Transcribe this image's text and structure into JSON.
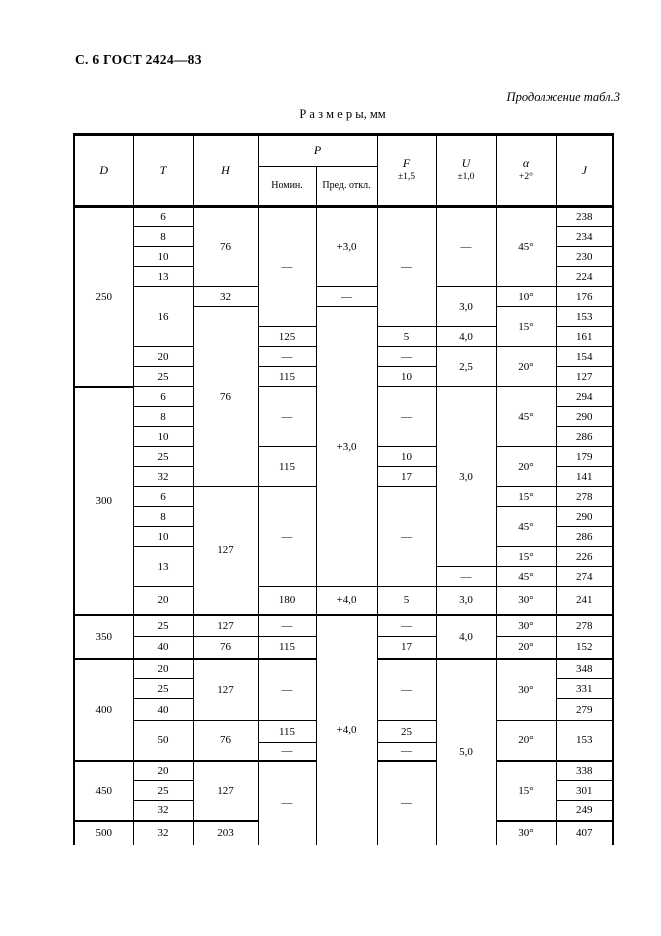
{
  "page": {
    "doc_ref": "С. 6 ГОСТ 2424—83",
    "continuation_note": "Продолжение табл.3",
    "units_caption": "Р а з м е р ы, мм"
  },
  "table": {
    "header": {
      "d": "D",
      "t": "T",
      "h": "H",
      "p": "P",
      "nomin": "Номин.",
      "pred": "Пред. откл.",
      "f": "F",
      "f_tol": "±1,5",
      "u": "U",
      "u_tol": "±1,0",
      "alpha": "α",
      "alpha_tol": "+2°",
      "j": "J"
    },
    "rows": [
      {
        "cells": [
          {
            "col": "D",
            "v": "250",
            "rs": 9
          },
          {
            "col": "T",
            "v": "6"
          },
          {
            "col": "H",
            "v": "76",
            "rs": 4
          },
          {
            "col": "N",
            "v": "—",
            "rs": 6
          },
          {
            "col": "PO",
            "v": "+3,0",
            "rs": 4
          },
          {
            "col": "F",
            "v": "—",
            "rs": 6
          },
          {
            "col": "U",
            "v": "—",
            "rs": 4
          },
          {
            "col": "A",
            "v": "45°",
            "rs": 4
          },
          {
            "col": "J",
            "v": "238"
          }
        ]
      },
      {
        "cells": [
          {
            "col": "T",
            "v": "8"
          },
          {
            "col": "J",
            "v": "234"
          }
        ]
      },
      {
        "cells": [
          {
            "col": "T",
            "v": "10"
          },
          {
            "col": "J",
            "v": "230"
          }
        ]
      },
      {
        "cells": [
          {
            "col": "T",
            "v": "13"
          },
          {
            "col": "J",
            "v": "224"
          }
        ]
      },
      {
        "cells": [
          {
            "col": "T",
            "v": "16",
            "rs": 3
          },
          {
            "col": "H",
            "v": "32"
          },
          {
            "col": "PO",
            "v": "—"
          },
          {
            "col": "U",
            "v": "3,0",
            "rs": 2
          },
          {
            "col": "A",
            "v": "10°"
          },
          {
            "col": "J",
            "v": "176"
          }
        ]
      },
      {
        "cells": [
          {
            "col": "H",
            "v": "76",
            "rs": 9
          },
          {
            "col": "PO",
            "v": "+3,0",
            "rs": 14
          },
          {
            "col": "A",
            "v": "15°",
            "rs": 2
          },
          {
            "col": "J",
            "v": "153"
          }
        ]
      },
      {
        "cells": [
          {
            "col": "N",
            "v": "125"
          },
          {
            "col": "F",
            "v": "5"
          },
          {
            "col": "U",
            "v": "4,0"
          },
          {
            "col": "J",
            "v": "161"
          }
        ]
      },
      {
        "cells": [
          {
            "col": "T",
            "v": "20"
          },
          {
            "col": "N",
            "v": "—"
          },
          {
            "col": "F",
            "v": "—"
          },
          {
            "col": "U",
            "v": "2,5",
            "rs": 2
          },
          {
            "col": "A",
            "v": "20°",
            "rs": 2
          },
          {
            "col": "J",
            "v": "154"
          }
        ]
      },
      {
        "cells": [
          {
            "col": "T",
            "v": "25"
          },
          {
            "col": "N",
            "v": "115"
          },
          {
            "col": "F",
            "v": "10"
          },
          {
            "col": "J",
            "v": "127"
          }
        ]
      },
      {
        "sep": "d",
        "cells": [
          {
            "col": "D",
            "v": "300",
            "rs": 11
          },
          {
            "col": "T",
            "v": "6"
          },
          {
            "col": "N",
            "v": "—",
            "rs": 3
          },
          {
            "col": "F",
            "v": "—",
            "rs": 3
          },
          {
            "col": "U",
            "v": "3,0",
            "rs": 9
          },
          {
            "col": "A",
            "v": "45°",
            "rs": 3
          },
          {
            "col": "J",
            "v": "294"
          }
        ]
      },
      {
        "cells": [
          {
            "col": "T",
            "v": "8"
          },
          {
            "col": "J",
            "v": "290"
          }
        ]
      },
      {
        "cells": [
          {
            "col": "T",
            "v": "10"
          },
          {
            "col": "J",
            "v": "286"
          }
        ]
      },
      {
        "cells": [
          {
            "col": "T",
            "v": "25"
          },
          {
            "col": "N",
            "v": "115",
            "rs": 2
          },
          {
            "col": "F",
            "v": "10"
          },
          {
            "col": "A",
            "v": "20°",
            "rs": 2
          },
          {
            "col": "J",
            "v": "179"
          }
        ]
      },
      {
        "cells": [
          {
            "col": "T",
            "v": "32"
          },
          {
            "col": "F",
            "v": "17"
          },
          {
            "col": "J",
            "v": "141"
          }
        ]
      },
      {
        "cells": [
          {
            "col": "T",
            "v": "6"
          },
          {
            "col": "H",
            "v": "127",
            "rs": 6
          },
          {
            "col": "N",
            "v": "—",
            "rs": 5
          },
          {
            "col": "F",
            "v": "—",
            "rs": 5
          },
          {
            "col": "A",
            "v": "15°"
          },
          {
            "col": "J",
            "v": "278"
          }
        ]
      },
      {
        "cells": [
          {
            "col": "T",
            "v": "8"
          },
          {
            "col": "A",
            "v": "45°",
            "rs": 2
          },
          {
            "col": "J",
            "v": "290"
          }
        ]
      },
      {
        "cells": [
          {
            "col": "T",
            "v": "10"
          },
          {
            "col": "J",
            "v": "286"
          }
        ]
      },
      {
        "cells": [
          {
            "col": "T",
            "v": "13",
            "rs": 2
          },
          {
            "col": "A",
            "v": "15°"
          },
          {
            "col": "J",
            "v": "226"
          }
        ]
      },
      {
        "cells": [
          {
            "col": "U",
            "v": "—"
          },
          {
            "col": "A",
            "v": "45°"
          },
          {
            "col": "J",
            "v": "274"
          }
        ]
      },
      {
        "cells": [
          {
            "col": "T",
            "v": "20"
          },
          {
            "col": "N",
            "v": "180"
          },
          {
            "col": "PO",
            "v": "+4,0"
          },
          {
            "col": "F",
            "v": "5"
          },
          {
            "col": "U",
            "v": "3,0"
          },
          {
            "col": "A",
            "v": "30°"
          },
          {
            "col": "J",
            "v": "241"
          }
        ]
      },
      {
        "sep": "all",
        "cells": [
          {
            "col": "D",
            "v": "350",
            "rs": 2
          },
          {
            "col": "T",
            "v": "25"
          },
          {
            "col": "H",
            "v": "127"
          },
          {
            "col": "N",
            "v": "—"
          },
          {
            "col": "PO",
            "v": "+4,0",
            "rs": 11
          },
          {
            "col": "F",
            "v": "—"
          },
          {
            "col": "U",
            "v": "4,0",
            "rs": 2
          },
          {
            "col": "A",
            "v": "30°"
          },
          {
            "col": "J",
            "v": "278"
          }
        ]
      },
      {
        "cells": [
          {
            "col": "T",
            "v": "40"
          },
          {
            "col": "H",
            "v": "76"
          },
          {
            "col": "N",
            "v": "115"
          },
          {
            "col": "F",
            "v": "17"
          },
          {
            "col": "A",
            "v": "20°"
          },
          {
            "col": "J",
            "v": "152"
          }
        ]
      },
      {
        "sep": "all",
        "cells": [
          {
            "col": "D",
            "v": "400",
            "rs": 5
          },
          {
            "col": "T",
            "v": "20"
          },
          {
            "col": "H",
            "v": "127",
            "rs": 3
          },
          {
            "col": "N",
            "v": "—",
            "rs": 3
          },
          {
            "col": "F",
            "v": "—",
            "rs": 3
          },
          {
            "col": "U",
            "v": "5,0",
            "rs": 9
          },
          {
            "col": "A",
            "v": "30°",
            "rs": 3
          },
          {
            "col": "J",
            "v": "348"
          }
        ]
      },
      {
        "cells": [
          {
            "col": "T",
            "v": "25"
          },
          {
            "col": "J",
            "v": "331"
          }
        ]
      },
      {
        "cells": [
          {
            "col": "T",
            "v": "40"
          },
          {
            "col": "J",
            "v": "279"
          }
        ]
      },
      {
        "cells": [
          {
            "col": "T",
            "v": "50",
            "rs": 2
          },
          {
            "col": "H",
            "v": "76",
            "rs": 2
          },
          {
            "col": "N",
            "v": "115"
          },
          {
            "col": "F",
            "v": "25"
          },
          {
            "col": "A",
            "v": "20°",
            "rs": 2
          },
          {
            "col": "J",
            "v": "153",
            "rs": 2
          }
        ]
      },
      {
        "cells": [
          {
            "col": "N",
            "v": "—"
          },
          {
            "col": "F",
            "v": "—"
          }
        ]
      },
      {
        "sep": "all",
        "cells": [
          {
            "col": "D",
            "v": "450",
            "rs": 3
          },
          {
            "col": "T",
            "v": "20"
          },
          {
            "col": "H",
            "v": "127",
            "rs": 3
          },
          {
            "col": "N",
            "v": "—",
            "rs": 4
          },
          {
            "col": "F",
            "v": "—",
            "rs": 4
          },
          {
            "col": "A",
            "v": "15°",
            "rs": 3
          },
          {
            "col": "J",
            "v": "338"
          }
        ]
      },
      {
        "cells": [
          {
            "col": "T",
            "v": "25"
          },
          {
            "col": "J",
            "v": "301"
          }
        ]
      },
      {
        "cells": [
          {
            "col": "T",
            "v": "32"
          },
          {
            "col": "J",
            "v": "249"
          }
        ]
      },
      {
        "sep": "all",
        "cells": [
          {
            "col": "D",
            "v": "500"
          },
          {
            "col": "T",
            "v": "32"
          },
          {
            "col": "H",
            "v": "203"
          },
          {
            "col": "A",
            "v": "30°"
          },
          {
            "col": "J",
            "v": "407"
          }
        ]
      }
    ]
  }
}
